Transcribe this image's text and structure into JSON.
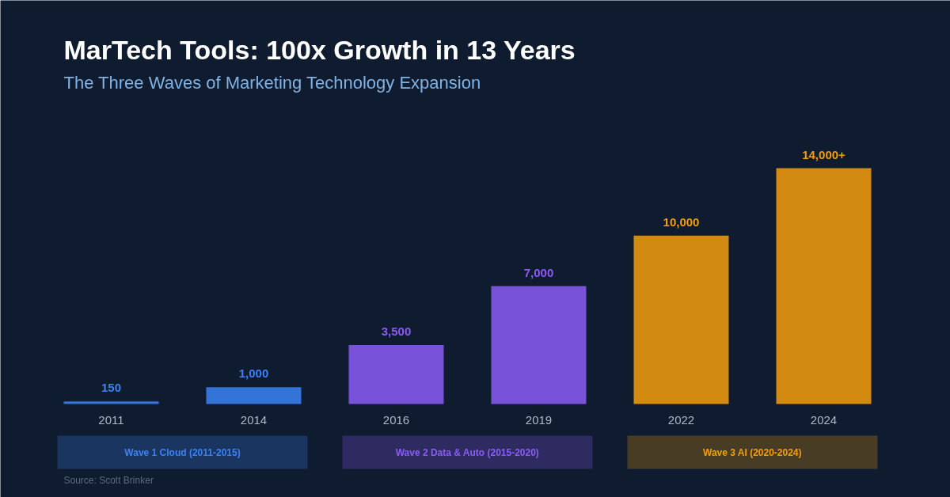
{
  "chart_data": {
    "type": "bar",
    "title": "MarTech Tools: 100x Growth in 13 Years",
    "subtitle": "The Three Waves of Marketing Technology Expansion",
    "categories": [
      "2011",
      "2014",
      "2016",
      "2019",
      "2022",
      "2024"
    ],
    "values": [
      150,
      1000,
      3500,
      7000,
      10000,
      14000
    ],
    "colors": [
      "#3b82f6",
      "#3b82f6",
      "#8b5cf6",
      "#8b5cf6",
      "#f59e0b",
      "#f59e0b"
    ],
    "value_labels": [
      "150",
      "1,000",
      "3,500",
      "7,000",
      "10,000",
      "14,000+"
    ],
    "annotations": [
      "Wave 1 Cloud (2011-2015)",
      "Wave 2 Data & Auto (2015-2020)",
      "Wave 3 AI (2020-2024)",
      "Source: Scott Brinker"
    ]
  }
}
